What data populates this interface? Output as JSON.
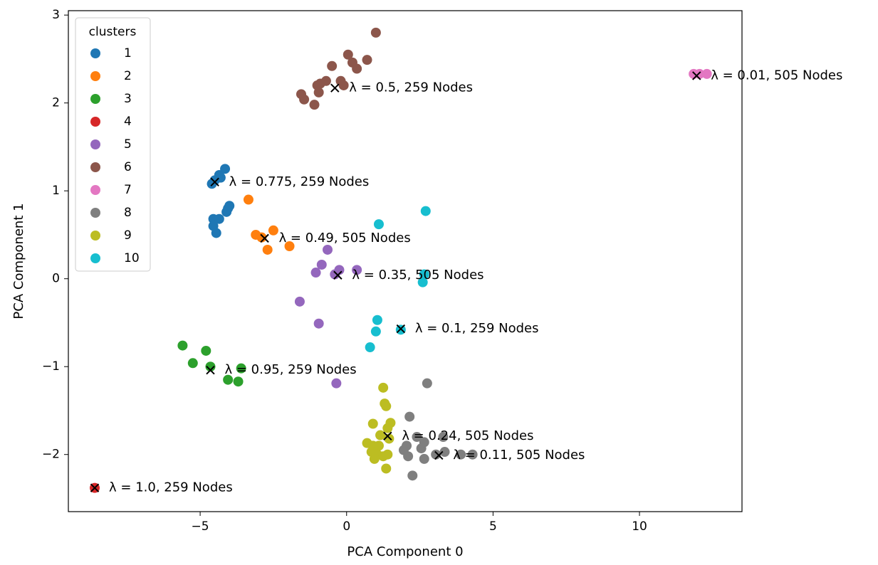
{
  "chart_data": {
    "type": "scatter",
    "xlabel": "PCA Component 0",
    "ylabel": "PCA Component 1",
    "xlim": [
      -9.5,
      13.5
    ],
    "ylim": [
      -2.65,
      3.05
    ],
    "xticks": [
      -5,
      0,
      5,
      10
    ],
    "yticks": [
      -2,
      -1,
      0,
      1,
      2,
      3
    ],
    "tick_labels_x": [
      "−5",
      "0",
      "5",
      "10"
    ],
    "tick_labels_y": [
      "−2",
      "−1",
      "0",
      "1",
      "2",
      "3"
    ],
    "grid": false,
    "legend": {
      "title": "clusters",
      "placement": "top-left",
      "entries": [
        "1",
        "2",
        "3",
        "4",
        "5",
        "6",
        "7",
        "8",
        "9",
        "10"
      ]
    },
    "series": [
      {
        "name": "1",
        "color": "#1f77b4",
        "points": [
          [
            -4.5,
            1.12
          ],
          [
            -4.6,
            1.08
          ],
          [
            -4.3,
            1.15
          ],
          [
            -4.15,
            1.25
          ],
          [
            -4.35,
            1.18
          ],
          [
            -4.05,
            0.8
          ],
          [
            -4.0,
            0.83
          ],
          [
            -4.55,
            0.68
          ],
          [
            -4.35,
            0.68
          ],
          [
            -4.1,
            0.76
          ],
          [
            -4.55,
            0.6
          ],
          [
            -4.45,
            0.52
          ]
        ]
      },
      {
        "name": "2",
        "color": "#ff7f0e",
        "points": [
          [
            -3.35,
            0.9
          ],
          [
            -3.1,
            0.5
          ],
          [
            -2.9,
            0.47
          ],
          [
            -2.5,
            0.55
          ],
          [
            -1.95,
            0.37
          ],
          [
            -2.7,
            0.33
          ]
        ]
      },
      {
        "name": "3",
        "color": "#2ca02c",
        "points": [
          [
            -5.6,
            -0.76
          ],
          [
            -5.25,
            -0.96
          ],
          [
            -4.8,
            -0.82
          ],
          [
            -4.65,
            -1.0
          ],
          [
            -3.6,
            -1.02
          ],
          [
            -4.05,
            -1.15
          ],
          [
            -3.7,
            -1.17
          ]
        ]
      },
      {
        "name": "4",
        "color": "#d62728",
        "points": [
          [
            -8.6,
            -2.38
          ]
        ]
      },
      {
        "name": "5",
        "color": "#9467bd",
        "points": [
          [
            -0.65,
            0.33
          ],
          [
            -0.85,
            0.16
          ],
          [
            -1.05,
            0.07
          ],
          [
            -0.25,
            0.1
          ],
          [
            0.35,
            0.1
          ],
          [
            -0.4,
            0.05
          ],
          [
            -1.6,
            -0.26
          ],
          [
            -0.95,
            -0.51
          ],
          [
            -0.35,
            -1.19
          ]
        ]
      },
      {
        "name": "6",
        "color": "#8c564b",
        "points": [
          [
            1.0,
            2.8
          ],
          [
            0.05,
            2.55
          ],
          [
            0.2,
            2.46
          ],
          [
            0.7,
            2.49
          ],
          [
            0.35,
            2.39
          ],
          [
            -0.5,
            2.42
          ],
          [
            -0.7,
            2.25
          ],
          [
            -1.0,
            2.2
          ],
          [
            -0.9,
            2.22
          ],
          [
            -0.2,
            2.25
          ],
          [
            -0.1,
            2.2
          ],
          [
            -1.55,
            2.1
          ],
          [
            -1.45,
            2.04
          ],
          [
            -0.95,
            2.12
          ],
          [
            -1.1,
            1.98
          ]
        ]
      },
      {
        "name": "7",
        "color": "#e377c2",
        "points": [
          [
            11.85,
            2.33
          ],
          [
            12.05,
            2.33
          ],
          [
            12.3,
            2.33
          ]
        ]
      },
      {
        "name": "8",
        "color": "#7f7f7f",
        "points": [
          [
            2.75,
            -1.19
          ],
          [
            2.15,
            -1.57
          ],
          [
            2.4,
            -1.8
          ],
          [
            2.55,
            -1.93
          ],
          [
            2.65,
            -1.86
          ],
          [
            2.05,
            -1.9
          ],
          [
            1.95,
            -1.95
          ],
          [
            2.1,
            -2.02
          ],
          [
            2.65,
            -2.05
          ],
          [
            3.3,
            -1.8
          ],
          [
            3.35,
            -1.97
          ],
          [
            3.9,
            -2.0
          ],
          [
            4.3,
            -2.0
          ],
          [
            2.25,
            -2.24
          ],
          [
            3.05,
            -2.0
          ]
        ]
      },
      {
        "name": "9",
        "color": "#bcbd22",
        "points": [
          [
            1.25,
            -1.24
          ],
          [
            1.3,
            -1.42
          ],
          [
            1.35,
            -1.45
          ],
          [
            0.9,
            -1.65
          ],
          [
            1.5,
            -1.64
          ],
          [
            1.4,
            -1.7
          ],
          [
            1.15,
            -1.78
          ],
          [
            1.45,
            -1.82
          ],
          [
            0.7,
            -1.87
          ],
          [
            0.9,
            -1.9
          ],
          [
            1.1,
            -1.9
          ],
          [
            0.85,
            -1.97
          ],
          [
            1.05,
            -2.0
          ],
          [
            1.4,
            -2.0
          ],
          [
            1.25,
            -2.02
          ],
          [
            0.95,
            -2.05
          ],
          [
            1.35,
            -2.16
          ]
        ]
      },
      {
        "name": "10",
        "color": "#17becf",
        "points": [
          [
            2.7,
            0.77
          ],
          [
            1.1,
            0.62
          ],
          [
            2.65,
            0.05
          ],
          [
            2.6,
            -0.04
          ],
          [
            1.05,
            -0.47
          ],
          [
            1.0,
            -0.6
          ],
          [
            1.85,
            -0.58
          ],
          [
            0.8,
            -0.78
          ]
        ]
      }
    ],
    "centroids": [
      {
        "x": -4.5,
        "y": 1.1,
        "label": "λ = 0.775, 259 Nodes"
      },
      {
        "x": -2.8,
        "y": 0.46,
        "label": "λ = 0.49, 505 Nodes"
      },
      {
        "x": -4.65,
        "y": -1.04,
        "label": "λ = 0.95, 259 Nodes"
      },
      {
        "x": -8.6,
        "y": -2.38,
        "label": "λ = 1.0, 259 Nodes"
      },
      {
        "x": -0.3,
        "y": 0.04,
        "label": "λ = 0.35, 505 Nodes"
      },
      {
        "x": -0.4,
        "y": 2.17,
        "label": "λ = 0.5, 259 Nodes"
      },
      {
        "x": 11.95,
        "y": 2.31,
        "label": "λ = 0.01, 505 Nodes"
      },
      {
        "x": 3.15,
        "y": -2.01,
        "label": "λ = 0.11, 505 Nodes"
      },
      {
        "x": 1.4,
        "y": -1.79,
        "label": "λ = 0.24, 505 Nodes"
      },
      {
        "x": 1.85,
        "y": -0.57,
        "label": "λ = 0.1, 259 Nodes"
      }
    ]
  }
}
